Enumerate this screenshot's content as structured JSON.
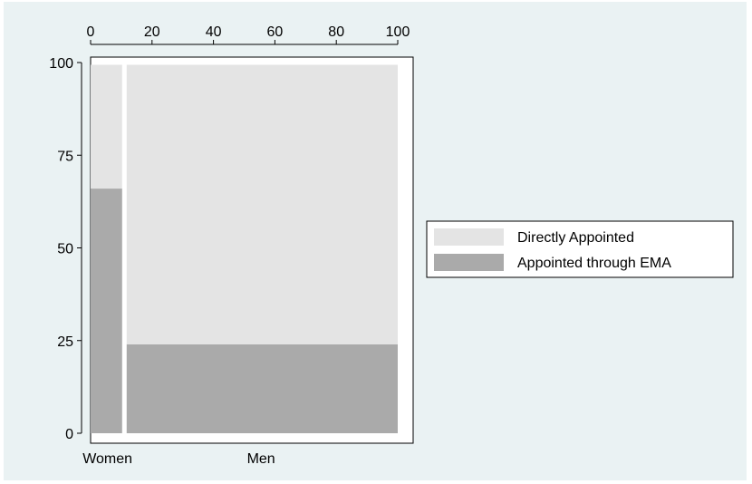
{
  "chart_data": {
    "type": "mosaic",
    "title": "",
    "xlabel": "",
    "ylabel": "",
    "xlim": [
      0,
      100
    ],
    "ylim": [
      0,
      100
    ],
    "top_axis_ticks": [
      0,
      20,
      40,
      60,
      80,
      100
    ],
    "left_axis_ticks": [
      0,
      25,
      50,
      75,
      100
    ],
    "categories": [
      "Women",
      "Men"
    ],
    "column_widths_percent": [
      11,
      89
    ],
    "series": [
      {
        "name": "Appointed through EMA",
        "values": [
          66,
          24
        ],
        "color": "#aaaaaa"
      },
      {
        "name": "Directly Appointed",
        "values": [
          34,
          76
        ],
        "color": "#e4e4e4"
      }
    ],
    "legend": {
      "position": "right",
      "entries": [
        "Directly Appointed",
        "Appointed through EMA"
      ]
    },
    "grid": false,
    "colors": {
      "figure_background": "#eaf2f3",
      "plot_background": "#ffffff",
      "axis": "#000000"
    }
  }
}
